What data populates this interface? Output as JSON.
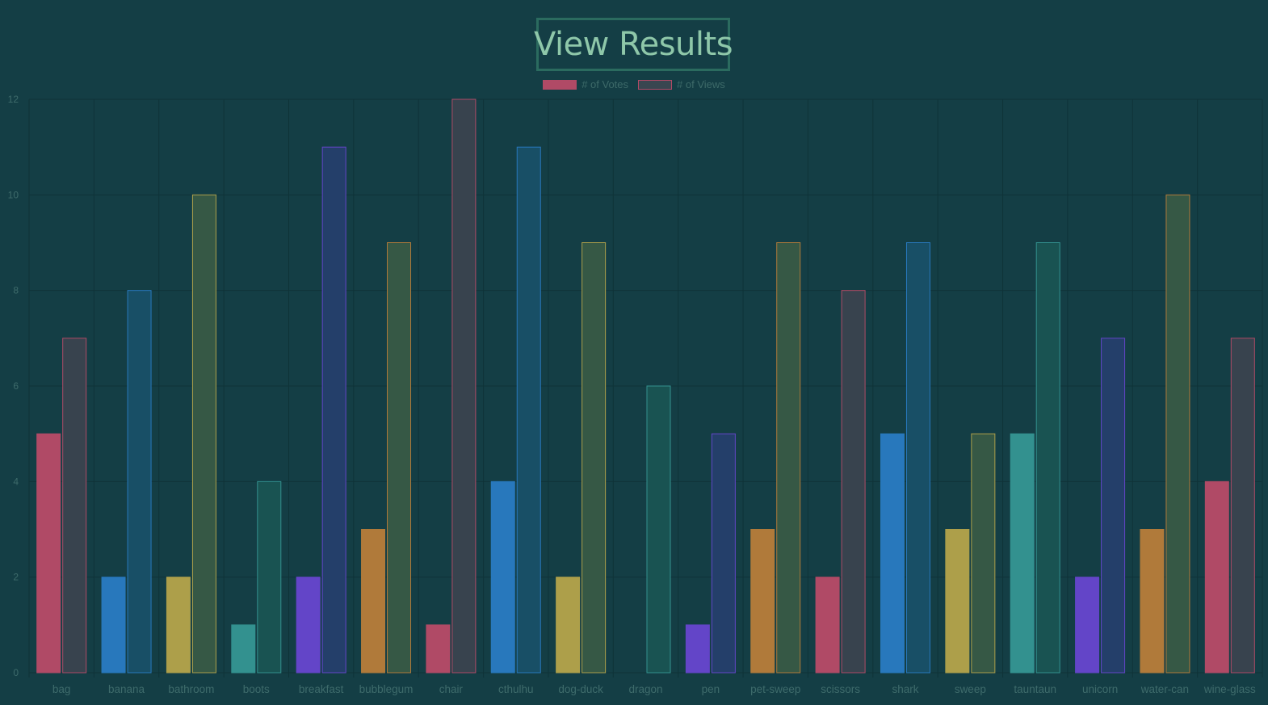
{
  "page_title": "View Results",
  "chart_data": {
    "type": "bar",
    "title": "",
    "xlabel": "",
    "ylabel": "",
    "ylim": [
      0,
      12
    ],
    "yticks": [
      0,
      2,
      4,
      6,
      8,
      10,
      12
    ],
    "grid": true,
    "legend_position": "top",
    "categories": [
      "bag",
      "banana",
      "bathroom",
      "boots",
      "breakfast",
      "bubblegum",
      "chair",
      "cthulhu",
      "dog-duck",
      "dragon",
      "pen",
      "pet-sweep",
      "scissors",
      "shark",
      "sweep",
      "tauntaun",
      "unicorn",
      "water-can",
      "wine-glass"
    ],
    "series": [
      {
        "name": "# of Votes",
        "values": [
          5,
          2,
          2,
          1,
          2,
          3,
          1,
          4,
          2,
          0,
          1,
          3,
          2,
          5,
          3,
          5,
          2,
          3,
          4
        ],
        "legend_color": "#b04a66",
        "legend_border": "#b04a66"
      },
      {
        "name": "# of Views",
        "values": [
          7,
          8,
          10,
          4,
          11,
          9,
          12,
          11,
          9,
          6,
          5,
          9,
          8,
          9,
          5,
          9,
          7,
          10,
          7
        ],
        "legend_color": "#3a4650",
        "legend_border": "#b04a66"
      }
    ],
    "vote_fill_colors": [
      "#b04a66",
      "#2878bc",
      "#ad9f4a",
      "#33918f",
      "#6345c8",
      "#b07a3a",
      "#b04a66",
      "#2878bc",
      "#ad9f4a",
      "#33918f",
      "#6345c8",
      "#b07a3a",
      "#b04a66",
      "#2878bc",
      "#ad9f4a",
      "#33918f",
      "#6345c8",
      "#b07a3a",
      "#b04a66"
    ],
    "view_fill_colors": [
      "#38434e",
      "#184f66",
      "#365845",
      "#195352",
      "#243f6a",
      "#365845",
      "#38434e",
      "#184f66",
      "#365845",
      "#195352",
      "#243f6a",
      "#365845",
      "#38434e",
      "#184f66",
      "#365845",
      "#195352",
      "#243f6a",
      "#365845",
      "#38434e"
    ],
    "view_border_colors": [
      "#b04a66",
      "#2878bc",
      "#ad9f4a",
      "#33918f",
      "#6345c8",
      "#b07a3a",
      "#b04a66",
      "#2878bc",
      "#ad9f4a",
      "#33918f",
      "#6345c8",
      "#b07a3a",
      "#b04a66",
      "#2878bc",
      "#ad9f4a",
      "#33918f",
      "#6345c8",
      "#b07a3a",
      "#b04a66"
    ]
  }
}
